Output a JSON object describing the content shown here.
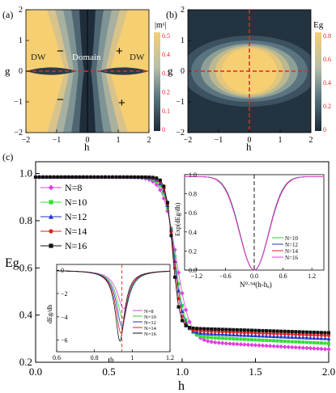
{
  "panels": {
    "a": {
      "label": "(a)",
      "xlabel": "h",
      "ylabel": "g",
      "xticks": [
        "−2",
        "−1",
        "0",
        "1",
        "2"
      ],
      "yticks": [
        "2",
        "1",
        "0",
        "−1",
        "−2"
      ],
      "text_dw_left": "DW",
      "text_dw_right": "DW",
      "text_domain": "Domain",
      "signs": [
        "−",
        "+",
        "−",
        "+"
      ],
      "colorbar_title": "|mˣ|",
      "colorbar_ticks": [
        "0.5",
        "0.4",
        "0.3",
        "0.2",
        "0.1",
        "0"
      ]
    },
    "b": {
      "label": "(b)",
      "xlabel": "h",
      "ylabel": "g",
      "xticks": [
        "−2",
        "−1",
        "0",
        "1",
        "2"
      ],
      "yticks": [
        "2",
        "1",
        "0",
        "−1",
        "−2"
      ],
      "colorbar_title": "Eg",
      "colorbar_ticks": [
        "0.8",
        "0.6",
        "0.4",
        "0.2",
        "0"
      ]
    },
    "c": {
      "label": "(c)",
      "xlabel": "h",
      "ylabel": "Eg",
      "xticks": [
        "0.0",
        "0.5",
        "1.0",
        "1.5",
        "2.0"
      ],
      "yticks": [
        "1.0",
        "0.8",
        "0.6",
        "0.4",
        "0.2"
      ]
    },
    "inset_right": {
      "ylabel": "Exp(dEg/dh)",
      "xlabel": "N⁰⋅⁵⁴(h-hₐ)",
      "xticks": [
        "−1.2",
        "−0.6",
        "0.0",
        "0.6",
        "1.2"
      ],
      "yticks": [
        "1.0",
        "0.8",
        "0.6",
        "0.4",
        "0.2",
        "0.0"
      ],
      "legend": [
        "N=10",
        "N=12",
        "N=14",
        "N=16"
      ]
    },
    "inset_left": {
      "ylabel": "dEg/dh",
      "xlabel": "h",
      "xticks": [
        "0.6",
        "0.8",
        "1",
        "1.2"
      ],
      "yticks": [
        "0",
        "−2",
        "−4",
        "−6"
      ],
      "legend": [
        "N=8",
        "N=10",
        "N=12",
        "N=14",
        "N=16"
      ]
    }
  },
  "chart_data": [
    {
      "type": "heatmap",
      "panel": "a",
      "xlabel": "h",
      "ylabel": "g",
      "xlim": [
        -2,
        2
      ],
      "ylim": [
        -2,
        2
      ],
      "colorbar": {
        "title": "|mˣ|",
        "range": [
          0,
          0.5
        ]
      }
    },
    {
      "type": "heatmap",
      "panel": "b",
      "xlabel": "h",
      "ylabel": "g",
      "xlim": [
        -2,
        2
      ],
      "ylim": [
        -2,
        2
      ],
      "colorbar": {
        "title": "Eg",
        "range": [
          0,
          0.9
        ]
      }
    },
    {
      "type": "scatter",
      "panel": "c",
      "xlabel": "h",
      "ylabel": "Eg",
      "xlim": [
        0,
        2
      ],
      "ylim": [
        0.2,
        1.05
      ],
      "legend_position": "left",
      "series": [
        {
          "name": "N=8",
          "color": "#e040e0",
          "marker": "diamond",
          "plateau": 0.985,
          "h0": 0.96,
          "w": 0.045,
          "tail": 0.29,
          "tslope": 0.035
        },
        {
          "name": "N=10",
          "color": "#33dd33",
          "marker": "square",
          "plateau": 0.985,
          "h0": 0.95,
          "w": 0.035,
          "tail": 0.31,
          "tslope": 0.03
        },
        {
          "name": "N=12",
          "color": "#2233cc",
          "marker": "triangle",
          "plateau": 0.985,
          "h0": 0.945,
          "w": 0.03,
          "tail": 0.325,
          "tslope": 0.025
        },
        {
          "name": "N=14",
          "color": "#dd2222",
          "marker": "circle",
          "plateau": 0.985,
          "h0": 0.94,
          "w": 0.026,
          "tail": 0.335,
          "tslope": 0.022
        },
        {
          "name": "N=16",
          "color": "#111111",
          "marker": "square",
          "plateau": 0.985,
          "h0": 0.935,
          "w": 0.022,
          "tail": 0.345,
          "tslope": 0.02
        }
      ]
    },
    {
      "type": "line",
      "panel": "inset_right",
      "xlabel": "N⁰⋅⁵⁴(h-hₐ)",
      "ylabel": "Exp(dEg/dh)",
      "xlim": [
        -1.45,
        1.45
      ],
      "ylim": [
        0,
        1.0
      ],
      "series": [
        {
          "name": "N=10",
          "color": "#33cc33"
        },
        {
          "name": "N=12",
          "color": "#2233cc"
        },
        {
          "name": "N=14",
          "color": "#dd2222"
        },
        {
          "name": "N=16",
          "color": "#e040e0"
        }
      ]
    },
    {
      "type": "line",
      "panel": "inset_left",
      "xlabel": "h",
      "ylabel": "dEg/dh",
      "xlim": [
        0.6,
        1.2
      ],
      "ylim": [
        -7,
        0.5
      ],
      "series": [
        {
          "name": "N=8",
          "color": "#e040e0",
          "min": -3.3,
          "h0": 0.955
        },
        {
          "name": "N=10",
          "color": "#33cc33",
          "min": -4.1,
          "h0": 0.95
        },
        {
          "name": "N=12",
          "color": "#2233cc",
          "min": -4.8,
          "h0": 0.945
        },
        {
          "name": "N=14",
          "color": "#dd2222",
          "min": -5.4,
          "h0": 0.94
        },
        {
          "name": "N=16",
          "color": "#111111",
          "min": -6.1,
          "h0": 0.935
        }
      ]
    }
  ]
}
